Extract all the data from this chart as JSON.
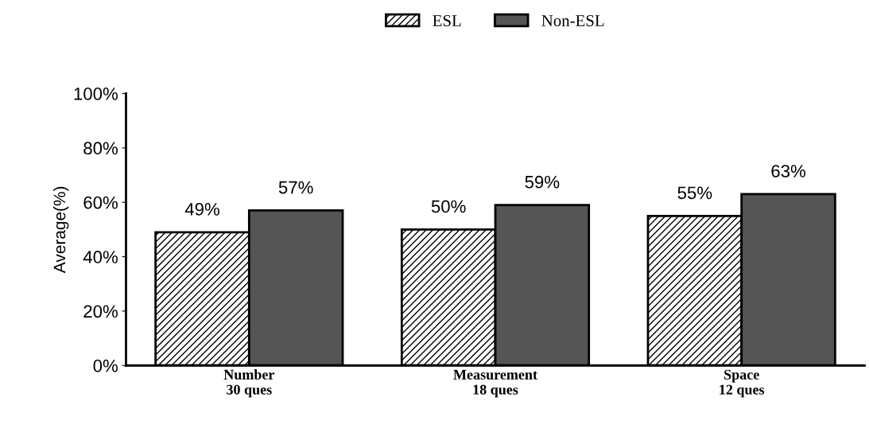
{
  "chart_data": {
    "type": "bar",
    "ylabel": "Average(%)",
    "categories": [
      "Number\n30 ques",
      "Measurement\n18 ques",
      "Space\n12 ques"
    ],
    "series": [
      {
        "name": "ESL",
        "color": "#000000",
        "values": [
          49,
          50,
          55
        ],
        "value_labels": [
          "49%",
          "50%",
          "55%"
        ]
      },
      {
        "name": "Non-ESL",
        "color": "#555555",
        "values": [
          57,
          59,
          63
        ],
        "value_labels": [
          "57%",
          "59%",
          "63%"
        ]
      }
    ],
    "ylim": [
      0,
      100
    ],
    "yticks": [
      {
        "value": 0,
        "label": "0%"
      },
      {
        "value": 20,
        "label": "20%"
      },
      {
        "value": 40,
        "label": "40%"
      },
      {
        "value": 60,
        "label": "60%"
      },
      {
        "value": 80,
        "label": "80%"
      },
      {
        "value": 100,
        "label": "100%"
      }
    ],
    "legend": "top",
    "grid": false
  }
}
